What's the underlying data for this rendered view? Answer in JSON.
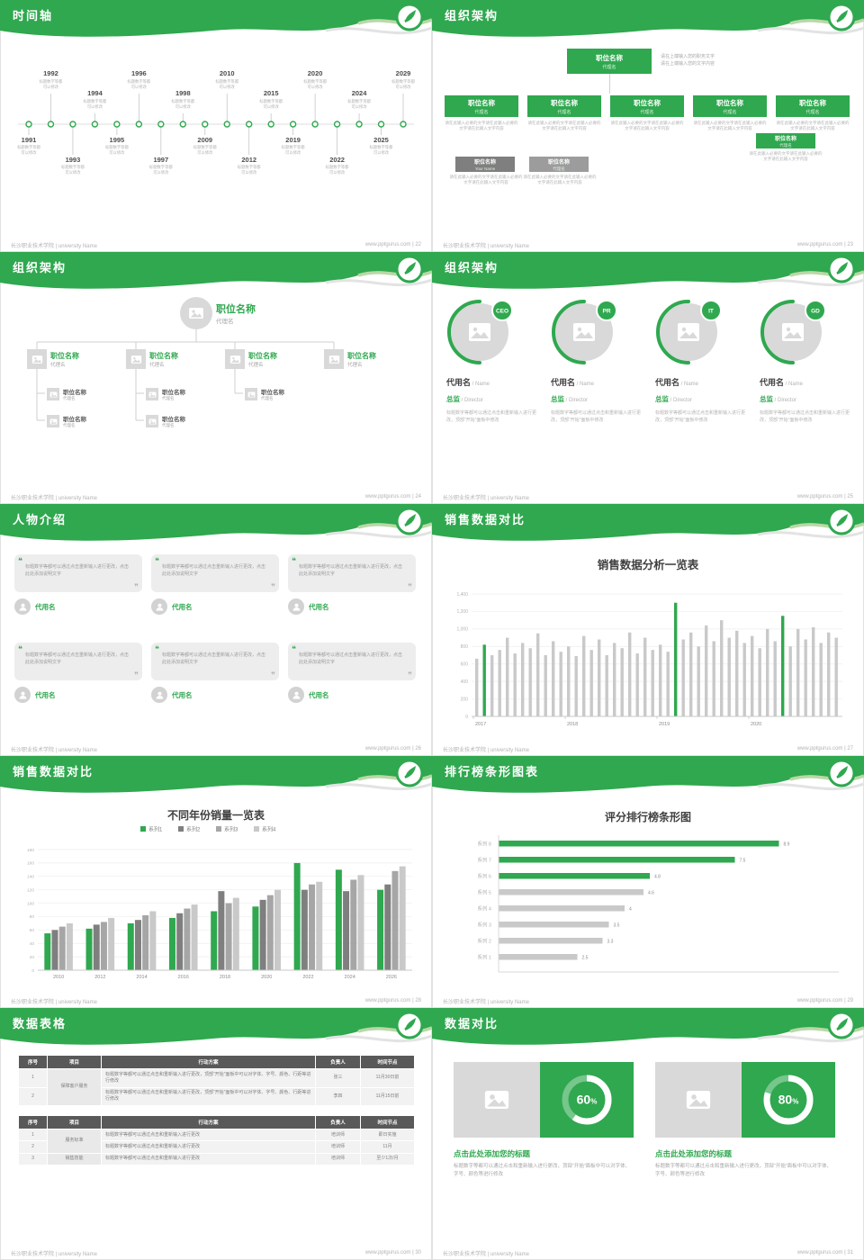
{
  "colors": {
    "green": "#2fa84f",
    "green_accent": "#b9d8a6",
    "gray_accent": "#e3e3e3",
    "box_gray": "#d9d9d9",
    "node_gray_dark": "#7f7f7f",
    "node_gray": "#9c9c9c",
    "bar_gray": "#c9c9c9",
    "series": [
      "#2fa84f",
      "#7f7f7f",
      "#a6a6a6",
      "#c9c9c9"
    ]
  },
  "footer": {
    "left": "长沙职业技术学院 | university Name",
    "site": "www.pptgurus.com"
  },
  "slides": [
    {
      "type": "timeline",
      "title": "时间轴",
      "page": "22",
      "desc": "标题数字等都可以修改",
      "events": [
        {
          "year": "1991",
          "pos": "bottom-short"
        },
        {
          "year": "1992",
          "pos": "top-tall"
        },
        {
          "year": "1993",
          "pos": "bottom-tall"
        },
        {
          "year": "1994",
          "pos": "top-short"
        },
        {
          "year": "1995",
          "pos": "bottom-short"
        },
        {
          "year": "1996",
          "pos": "top-tall"
        },
        {
          "year": "1997",
          "pos": "bottom-tall"
        },
        {
          "year": "1998",
          "pos": "top-short"
        },
        {
          "year": "2009",
          "pos": "bottom-short"
        },
        {
          "year": "2010",
          "pos": "top-tall"
        },
        {
          "year": "2012",
          "pos": "bottom-tall"
        },
        {
          "year": "2015",
          "pos": "top-short"
        },
        {
          "year": "2019",
          "pos": "bottom-short"
        },
        {
          "year": "2020",
          "pos": "top-tall"
        },
        {
          "year": "2022",
          "pos": "bottom-tall"
        },
        {
          "year": "2024",
          "pos": "top-short"
        },
        {
          "year": "2025",
          "pos": "bottom-short"
        },
        {
          "year": "2029",
          "pos": "top-tall"
        }
      ]
    },
    {
      "type": "org-boxes",
      "title": "组织架构",
      "page": "23",
      "node_label": "职位名称",
      "node_sub": "代理名",
      "top_note": [
        "请在上端输入您的职务文字",
        "请在上端输入您的文字内容"
      ],
      "node_desc": "请在此输入必要的文字请在此输入必要的文字请在此输入文字内容",
      "row_count": 5,
      "gray_nodes": [
        {
          "label": "职位名称",
          "sub": "Your Name"
        },
        {
          "label": "职位名称",
          "sub": "代理名"
        }
      ]
    },
    {
      "type": "org-tree",
      "title": "组织架构",
      "page": "24",
      "root": {
        "label": "职位名称",
        "sub": "代理名"
      },
      "child_label": "职位名称",
      "child_sub": "代理名",
      "child_count": 4,
      "sub_label": "职位名称",
      "sub_sub": "代理名",
      "grandchildren_counts": [
        2,
        2,
        1,
        0
      ]
    },
    {
      "type": "org-circles",
      "title": "组织架构",
      "page": "25",
      "roles": [
        {
          "badge": "CEO"
        },
        {
          "badge": "PR"
        },
        {
          "badge": "IT"
        },
        {
          "badge": "GD"
        }
      ],
      "name": "代用名",
      "name_en": "Name",
      "job": "总监",
      "job_en": "Director",
      "desc": "标题数字等都可以通过点击和重新输入进行更改，顶部“开始”面板中修改"
    },
    {
      "type": "people",
      "title": "人物介绍",
      "page": "26",
      "count": 6,
      "card_text": "标题数字等都可以通过点击重新输入进行更改，点击此处添加说明文字",
      "person_name": "代用名"
    },
    {
      "type": "chart",
      "title": "销售数据对比",
      "page": "27",
      "chart": 0
    },
    {
      "type": "chart",
      "title": "销售数据对比",
      "page": "28",
      "chart": 1
    },
    {
      "type": "chart",
      "title": "排行榜条形图表",
      "page": "29",
      "chart": 2
    },
    {
      "type": "tables",
      "title": "数据表格",
      "page": "30",
      "tables": [
        {
          "headers": [
            "序号",
            "项目",
            "行动方案",
            "负责人",
            "时间节点"
          ],
          "rows": [
            {
              "no": "1",
              "project": "保障客户服务",
              "project_rowspan": 2,
              "plan": "标题数字等都可以通过点击和重新输入进行更改，顶部“开始”面板中可以对字体、字号、颜色、行距等进行修改",
              "owner": "张三",
              "time": "11月30日前"
            },
            {
              "no": "2",
              "plan": "标题数字等都可以通过点击和重新输入进行更改，顶部“开始”面板中可以对字体、字号、颜色、行距等进行修改",
              "owner": "李四",
              "time": "11月15日前"
            }
          ]
        },
        {
          "headers": [
            "序号",
            "项目",
            "行动方案",
            "负责人",
            "时间节点"
          ],
          "rows": [
            {
              "no": "1",
              "project": "服务标准",
              "project_rowspan": 2,
              "plan": "标题数字等都可以通过点击和重新输入进行更改",
              "owner": "培训师",
              "time": "即日实施"
            },
            {
              "no": "2",
              "plan": "标题数字等都可以通过点击和重新输入进行更改",
              "owner": "培训师",
              "time": "11月"
            },
            {
              "no": "3",
              "project": "销售技能",
              "project_rowspan": 1,
              "plan": "标题数字等都可以通过点击和重新输入进行更改",
              "owner": "培训师",
              "time": "至少1次/月"
            }
          ]
        }
      ]
    },
    {
      "type": "compare",
      "title": "数据对比",
      "page": "31",
      "items": [
        {
          "percent": 60
        },
        {
          "percent": 80
        }
      ],
      "item_title": "点击此处添加您的标题",
      "item_desc": "标题数字等都可以通过点击和重新输入进行更改，顶部“开始”面板中可以对字体、字号、颜色等进行修改"
    }
  ],
  "chart_data": [
    {
      "type": "bar",
      "title": "销售数据分析一览表",
      "x_groups": [
        "2017",
        "2018",
        "2019",
        "2020"
      ],
      "bars_per_group": 12,
      "values": [
        660,
        820,
        700,
        760,
        900,
        720,
        840,
        780,
        950,
        700,
        860,
        740,
        800,
        690,
        920,
        760,
        880,
        700,
        840,
        780,
        960,
        720,
        900,
        760,
        820,
        740,
        1300,
        880,
        960,
        800,
        1040,
        860,
        1100,
        900,
        980,
        840,
        920,
        780,
        1000,
        860,
        1150,
        800,
        1000,
        880,
        1020,
        840,
        960,
        900
      ],
      "green_indices": [
        1,
        26,
        40
      ],
      "ylim": [
        0,
        1400
      ],
      "ytick_step": 200,
      "grid": true,
      "bar_color": "#c9c9c9",
      "highlight_color": "#2fa84f"
    },
    {
      "type": "bar",
      "title": "不同年份销量一览表",
      "categories": [
        "2010",
        "2012",
        "2014",
        "2016",
        "2018",
        "2020",
        "2022",
        "2024",
        "2026"
      ],
      "series": [
        {
          "name": "系列1",
          "color": "#2fa84f",
          "values": [
            55,
            62,
            70,
            78,
            88,
            95,
            160,
            150,
            120
          ]
        },
        {
          "name": "系列2",
          "color": "#7f7f7f",
          "values": [
            60,
            68,
            75,
            85,
            118,
            105,
            120,
            118,
            128
          ]
        },
        {
          "name": "系列3",
          "color": "#a6a6a6",
          "values": [
            65,
            72,
            82,
            92,
            100,
            112,
            128,
            135,
            148
          ]
        },
        {
          "name": "系列4",
          "color": "#c9c9c9",
          "values": [
            70,
            78,
            88,
            98,
            108,
            120,
            132,
            142,
            155
          ]
        }
      ],
      "ylim": [
        0,
        180
      ],
      "ytick_step": 20,
      "grid": true,
      "legend_position": "top"
    },
    {
      "type": "bar-horizontal",
      "title": "评分排行榜条形图",
      "categories": [
        "系列 8",
        "系列 7",
        "系列 6",
        "系列 5",
        "系列 4",
        "系列 3",
        "系列 2",
        "系列 1"
      ],
      "values": [
        8.9,
        7.5,
        4.8,
        4.6,
        4,
        3.5,
        3.3,
        2.5
      ],
      "colors": [
        "#2fa84f",
        "#2fa84f",
        "#2fa84f",
        "#c9c9c9",
        "#c9c9c9",
        "#c9c9c9",
        "#c9c9c9",
        "#c9c9c9"
      ],
      "xlim": [
        0,
        10
      ],
      "value_labels": true
    }
  ]
}
